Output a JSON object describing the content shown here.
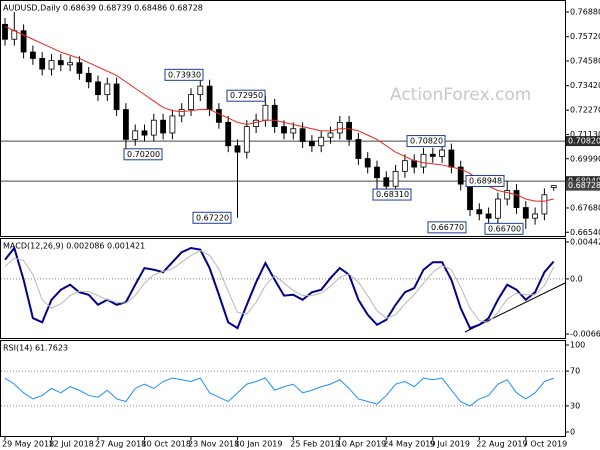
{
  "chart_data": [
    {
      "type": "candlestick",
      "title": "AUDUSD,Daily  0.68639 0.68739 0.68486 0.68728",
      "watermark": "ActionForex.com",
      "categories": [
        "29 May 2018",
        null,
        null,
        null,
        null,
        "12 Jul 2018",
        null,
        null,
        null,
        null,
        "27 Aug 2018",
        null,
        null,
        null,
        null,
        "10 Oct 2018",
        null,
        null,
        null,
        null,
        "23 Nov 2018",
        null,
        null,
        null,
        null,
        "10 Jan 2019",
        null,
        null,
        null,
        null,
        null,
        "25 Feb 2019",
        null,
        null,
        null,
        null,
        "10 Apr 2019",
        null,
        null,
        null,
        null,
        "24 May 2019",
        null,
        null,
        null,
        null,
        "9 Jul 2019",
        null,
        null,
        null,
        null,
        "22 Aug 2019",
        null,
        null,
        null,
        null,
        "7 Oct 2019",
        null,
        null,
        null
      ],
      "open": [
        0.763,
        0.756,
        0.76,
        0.75,
        0.747,
        0.742,
        0.746,
        0.744,
        0.745,
        0.74,
        0.736,
        0.73,
        0.735,
        0.723,
        0.709,
        0.713,
        0.711,
        0.718,
        0.712,
        0.72,
        0.723,
        0.73,
        0.734,
        0.723,
        0.717,
        0.706,
        0.703,
        0.715,
        0.718,
        0.725,
        0.715,
        0.712,
        0.714,
        0.708,
        0.706,
        0.71,
        0.712,
        0.717,
        0.709,
        0.7,
        0.696,
        0.691,
        0.687,
        0.694,
        0.699,
        0.696,
        0.702,
        0.701,
        0.704,
        0.696,
        0.688,
        0.676,
        0.674,
        0.672,
        0.681,
        0.685,
        0.677,
        0.672,
        0.674,
        0.68639
      ],
      "high": [
        0.766,
        0.7688,
        0.763,
        0.753,
        0.75,
        0.749,
        0.749,
        0.748,
        0.748,
        0.743,
        0.739,
        0.738,
        0.738,
        0.726,
        0.716,
        0.716,
        0.721,
        0.721,
        0.723,
        0.726,
        0.733,
        0.7393,
        0.737,
        0.726,
        0.72,
        0.709,
        0.718,
        0.721,
        0.7295,
        0.728,
        0.718,
        0.717,
        0.717,
        0.711,
        0.713,
        0.715,
        0.72,
        0.72,
        0.712,
        0.703,
        0.699,
        0.694,
        0.697,
        0.702,
        0.702,
        0.705,
        0.705,
        0.7082,
        0.707,
        0.699,
        0.691,
        0.679,
        0.677,
        0.684,
        0.6894,
        0.688,
        0.68,
        0.677,
        0.686,
        0.68739
      ],
      "low": [
        0.753,
        0.753,
        0.747,
        0.744,
        0.739,
        0.739,
        0.741,
        0.741,
        0.737,
        0.733,
        0.727,
        0.727,
        0.72,
        0.702,
        0.706,
        0.708,
        0.708,
        0.709,
        0.709,
        0.717,
        0.72,
        0.727,
        0.72,
        0.714,
        0.703,
        0.6722,
        0.7,
        0.712,
        0.715,
        0.712,
        0.709,
        0.709,
        0.705,
        0.703,
        0.703,
        0.707,
        0.709,
        0.706,
        0.697,
        0.693,
        0.6831,
        0.684,
        0.684,
        0.691,
        0.693,
        0.693,
        0.698,
        0.698,
        0.693,
        0.685,
        0.673,
        0.671,
        0.6677,
        0.669,
        0.678,
        0.674,
        0.667,
        0.669,
        0.671,
        0.68486
      ],
      "close": [
        0.756,
        0.76,
        0.75,
        0.747,
        0.742,
        0.746,
        0.744,
        0.745,
        0.74,
        0.736,
        0.73,
        0.735,
        0.723,
        0.709,
        0.713,
        0.711,
        0.718,
        0.712,
        0.72,
        0.723,
        0.73,
        0.734,
        0.723,
        0.717,
        0.706,
        0.703,
        0.715,
        0.718,
        0.725,
        0.715,
        0.712,
        0.714,
        0.708,
        0.706,
        0.71,
        0.712,
        0.717,
        0.709,
        0.7,
        0.696,
        0.691,
        0.687,
        0.694,
        0.699,
        0.696,
        0.702,
        0.701,
        0.704,
        0.696,
        0.688,
        0.676,
        0.674,
        0.672,
        0.681,
        0.685,
        0.677,
        0.672,
        0.674,
        0.683,
        0.68728
      ],
      "color_up": "#ffffff",
      "color_down": "#000000",
      "ma_color": "#e8271b",
      "ma_values": [
        0.762,
        0.76,
        0.758,
        0.756,
        0.754,
        0.752,
        0.75,
        0.7485,
        0.747,
        0.745,
        0.743,
        0.741,
        0.739,
        0.736,
        0.733,
        0.73,
        0.727,
        0.724,
        0.7225,
        0.722,
        0.7225,
        0.723,
        0.723,
        0.721,
        0.719,
        0.717,
        0.716,
        0.717,
        0.718,
        0.718,
        0.717,
        0.716,
        0.715,
        0.714,
        0.713,
        0.713,
        0.714,
        0.714,
        0.713,
        0.711,
        0.709,
        0.706,
        0.703,
        0.701,
        0.699,
        0.698,
        0.6975,
        0.697,
        0.696,
        0.695,
        0.693,
        0.69,
        0.687,
        0.685,
        0.684,
        0.683,
        0.681,
        0.68,
        0.68,
        0.681
      ],
      "ylim": [
        0.66364,
        0.77443
      ],
      "yticks": [
        {
          "value": 0.7688,
          "label": "0.76880"
        },
        {
          "value": 0.7572,
          "label": "0.75720"
        },
        {
          "value": 0.7458,
          "label": "0.74580"
        },
        {
          "value": 0.7342,
          "label": "0.73420"
        },
        {
          "value": 0.7227,
          "label": "0.72270"
        },
        {
          "value": 0.7113,
          "label": "0.71130"
        },
        {
          "value": 0.6999,
          "label": "0.69990"
        },
        {
          "value": 0.6768,
          "label": "0.67680"
        },
        {
          "value": 0.6654,
          "label": "0.66540"
        }
      ],
      "levels": [
        {
          "value": 0.7082,
          "label": "0.70820"
        },
        {
          "value": 0.6894,
          "label": "0.68940"
        }
      ],
      "annotations": [
        {
          "value": 0.7393,
          "label": "0.73930"
        },
        {
          "value": 0.702,
          "label": "0.70200"
        },
        {
          "value": 0.6722,
          "label": "0.67220"
        },
        {
          "value": 0.7295,
          "label": "0.72950"
        },
        {
          "value": 0.6831,
          "label": "0.68310"
        },
        {
          "value": 0.7082,
          "label": "0.70820"
        },
        {
          "value": 0.68948,
          "label": "0.68948"
        },
        {
          "value": 0.6677,
          "label": "0.66770"
        },
        {
          "value": 0.667,
          "label": "0.66700"
        }
      ]
    },
    {
      "type": "line",
      "title": "MACD(12,26,9) 0.002086 0.001421",
      "series": [
        {
          "color": "#00008b",
          "values": [
            0.0023,
            0.0037,
            -0.0001,
            -0.0047,
            -0.0052,
            -0.0025,
            -0.0013,
            -0.0007,
            -0.0016,
            -0.0019,
            -0.0031,
            -0.0025,
            -0.0031,
            -0.0028,
            -0.0007,
            0.0013,
            0.0011,
            0.0008,
            0.002,
            0.0032,
            0.0037,
            0.0035,
            0.0013,
            -0.0019,
            -0.0052,
            -0.0059,
            -0.0031,
            -0.0004,
            0.0019,
            -0.0001,
            -0.002,
            -0.0019,
            -0.0025,
            -0.0016,
            -0.0013,
            0.0001,
            0.0013,
            0.0005,
            -0.0025,
            -0.0043,
            -0.0055,
            -0.0049,
            -0.0031,
            -0.0016,
            -0.0011,
            0.0011,
            0.002,
            0.002,
            -0.0001,
            -0.0035,
            -0.0059,
            -0.0055,
            -0.0047,
            -0.0025,
            -0.0007,
            -0.0013,
            -0.0025,
            -0.0016,
            0.0008,
            0.002086
          ]
        },
        {
          "color": "#b8b8b8",
          "values": [
            0.0015,
            0.0025,
            0.0022,
            0.0005,
            -0.0025,
            -0.0035,
            -0.003,
            -0.002,
            -0.0015,
            -0.0015,
            -0.002,
            -0.0025,
            -0.0028,
            -0.0029,
            -0.002,
            -0.0005,
            0.0005,
            0.0009,
            0.0012,
            0.002,
            0.0028,
            0.0034,
            0.0028,
            0.0012,
            -0.0015,
            -0.004,
            -0.0042,
            -0.0028,
            -0.0008,
            0.0004,
            -0.0005,
            -0.0014,
            -0.002,
            -0.002,
            -0.0017,
            -0.0009,
            0.0002,
            0.0006,
            -0.0004,
            -0.002,
            -0.0038,
            -0.0047,
            -0.0043,
            -0.003,
            -0.0019,
            -0.0005,
            0.0008,
            0.0016,
            0.0011,
            -0.001,
            -0.0035,
            -0.005,
            -0.0052,
            -0.004,
            -0.0024,
            -0.0017,
            -0.0019,
            -0.0019,
            -0.0008,
            0.001421
          ]
        }
      ],
      "ylim": [
        -0.00708,
        0.0049
      ],
      "yticks": [
        0.004423,
        {
          "value": 0,
          "label": "0.0"
        },
        -0.006603
      ]
    },
    {
      "type": "line",
      "title": "RSI(14) 61.7623",
      "series": [
        {
          "color": "#1e90ff",
          "values": [
            62,
            55,
            45,
            38,
            42,
            50,
            45,
            52,
            48,
            42,
            40,
            48,
            38,
            35,
            50,
            55,
            50,
            58,
            62,
            60,
            58,
            62,
            45,
            40,
            35,
            45,
            55,
            58,
            62,
            48,
            52,
            55,
            45,
            48,
            52,
            55,
            60,
            50,
            38,
            35,
            32,
            42,
            55,
            58,
            52,
            62,
            60,
            62,
            48,
            35,
            30,
            38,
            42,
            55,
            60,
            45,
            38,
            45,
            58,
            61.7623
          ]
        }
      ],
      "ylim": [
        -4.6,
        105.7
      ],
      "yticks": [
        100,
        70,
        30,
        0
      ],
      "levels": [
        70,
        30
      ]
    }
  ]
}
